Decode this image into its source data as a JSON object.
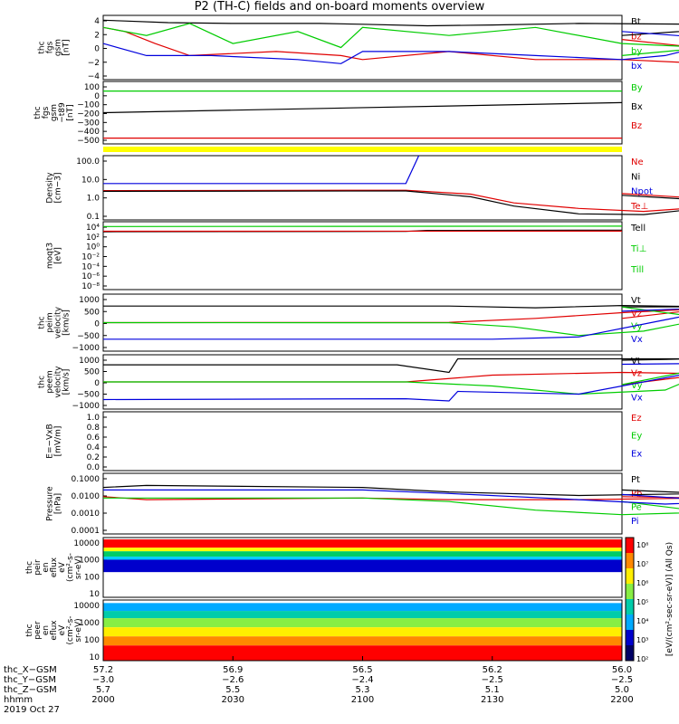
{
  "title": "P2 (TH-C) fields and on-board moments overview",
  "date_label": "2019 Oct 27",
  "colors": {
    "black": "#000000",
    "red": "#e00000",
    "green": "#00cc00",
    "blue": "#0000dd",
    "yellow": "#ffff00"
  },
  "chart_data": [
    {
      "type": "line",
      "panel": "fgs_gsm",
      "ylabel": [
        "thc",
        "fgs",
        "gsm",
        "[nT]"
      ],
      "yticks": [
        "4",
        "2",
        "0",
        "−2",
        "−4"
      ],
      "ylim": [
        -4,
        4
      ],
      "legend": [
        {
          "name": "Bt",
          "color": "black"
        },
        {
          "name": "bz",
          "color": "red"
        },
        {
          "name": "by",
          "color": "green"
        },
        {
          "name": "bx",
          "color": "blue"
        }
      ],
      "series": [
        {
          "name": "Bt",
          "x": [
            2000,
            2005,
            2015,
            2030,
            2050,
            2100,
            2115,
            2130,
            2150,
            2180,
            2190,
            2200
          ],
          "values": [
            3.4,
            3.3,
            3.1,
            3.0,
            3.0,
            2.9,
            2.7,
            2.8,
            3.0,
            2.9,
            2.6,
            1.5
          ]
        },
        {
          "name": "bz",
          "x": [
            2000,
            2005,
            2012,
            2020,
            2040,
            2055,
            2100,
            2120,
            2140,
            2160,
            2180,
            2195,
            2200
          ],
          "values": [
            2.5,
            2.0,
            0.5,
            -1.0,
            -0.5,
            -1.0,
            -1.5,
            -0.5,
            -1.5,
            -1.5,
            -2.0,
            -1.0,
            1.0
          ]
        },
        {
          "name": "by",
          "x": [
            2000,
            2010,
            2020,
            2030,
            2045,
            2055,
            2100,
            2120,
            2140,
            2160,
            2180,
            2200
          ],
          "values": [
            2.5,
            1.5,
            3.0,
            0.5,
            2.0,
            0.0,
            2.5,
            1.5,
            2.5,
            0.5,
            0.0,
            -1.0
          ]
        },
        {
          "name": "bx",
          "x": [
            2000,
            2010,
            2025,
            2045,
            2055,
            2100,
            2120,
            2140,
            2160,
            2170,
            2185,
            2200
          ],
          "values": [
            0.5,
            -1.0,
            -1.0,
            -1.5,
            -2.0,
            -0.5,
            -0.5,
            -1.0,
            -1.5,
            -1.0,
            1.0,
            2.0
          ]
        }
      ]
    },
    {
      "type": "line",
      "panel": "fgs_gse_minus_t89",
      "ylabel": [
        "thc",
        "fgs",
        "gsm",
        "−t89",
        "[nT]"
      ],
      "yticks": [
        "100",
        "0",
        "−100",
        "−200",
        "−300",
        "−400",
        "−500"
      ],
      "ylim": [
        -550,
        100
      ],
      "legend": [
        {
          "name": "By",
          "color": "green"
        },
        {
          "name": "Bx",
          "color": "black"
        },
        {
          "name": "Bz",
          "color": "red"
        }
      ],
      "series": [
        {
          "name": "By",
          "x": [
            2000,
            2200
          ],
          "values": [
            0,
            0
          ]
        },
        {
          "name": "Bx",
          "x": [
            2000,
            2200
          ],
          "values": [
            -225,
            -120
          ]
        },
        {
          "name": "Bz",
          "x": [
            2000,
            2200
          ],
          "values": [
            -490,
            -490
          ]
        }
      ]
    },
    {
      "type": "line",
      "panel": "density",
      "ylabel": [
        "Density",
        "[cm−3]"
      ],
      "yticks": [
        "100.0",
        "10.0",
        "1.0",
        "0.1"
      ],
      "ylim": [
        0.05,
        200
      ],
      "yscale": "log",
      "legend": [
        {
          "name": "Ne",
          "color": "red"
        },
        {
          "name": "Ni",
          "color": "black"
        },
        {
          "name": "Npot",
          "color": "blue"
        },
        {
          "name": "Te⊥",
          "color": "red"
        }
      ],
      "series": [
        {
          "name": "Ne",
          "x": [
            2000,
            2110,
            2125,
            2135,
            2150,
            2165,
            2175,
            2190,
            2200
          ],
          "values": [
            2.2,
            2.3,
            1.4,
            0.45,
            0.22,
            0.15,
            0.22,
            0.55,
            1.5
          ]
        },
        {
          "name": "Ni",
          "x": [
            2000,
            2110,
            2125,
            2135,
            2150,
            2165,
            2175,
            2190,
            2200
          ],
          "values": [
            2.0,
            2.1,
            1.0,
            0.3,
            0.11,
            0.1,
            0.18,
            0.45,
            1.2
          ]
        },
        {
          "name": "Npot",
          "x": [
            2000,
            2110,
            2113
          ],
          "values": [
            5.5,
            5.5,
            300
          ]
        }
      ]
    },
    {
      "type": "line",
      "panel": "moqt3",
      "ylabel": [
        "moqt3",
        "[eV]"
      ],
      "yticks": [
        "10⁴",
        "10²",
        "10⁰",
        "10⁻²",
        "10⁻⁴",
        "10⁻⁶",
        "10⁻⁸"
      ],
      "ylim": [
        1e-09,
        10000.0
      ],
      "yscale": "log",
      "legend": [
        {
          "name": "Tell",
          "color": "black"
        },
        {
          "name": "Ti⊥",
          "color": "green"
        },
        {
          "name": "Till",
          "color": "green"
        }
      ],
      "series": [
        {
          "name": "Tell",
          "x": [
            2000,
            2110,
            2115,
            2200
          ],
          "values": [
            120,
            140,
            220,
            240
          ]
        },
        {
          "name": "Te⊥",
          "x": [
            2000,
            2200
          ],
          "values": [
            150,
            160
          ]
        },
        {
          "name": "Ti⊥",
          "x": [
            2000,
            2200
          ],
          "values": [
            1200,
            1400
          ]
        }
      ]
    },
    {
      "type": "line",
      "panel": "peim_velocity",
      "ylabel": [
        "thc",
        "peim",
        "velocity",
        "[km/s]"
      ],
      "yticks": [
        "1000",
        "500",
        "0",
        "−500",
        "−1000"
      ],
      "ylim": [
        -1000,
        1000
      ],
      "legend": [
        {
          "name": "Vt",
          "color": "black"
        },
        {
          "name": "Vz",
          "color": "red"
        },
        {
          "name": "Vy",
          "color": "green"
        },
        {
          "name": "Vx",
          "color": "blue"
        }
      ],
      "series": [
        {
          "name": "Vt",
          "x": [
            2000,
            2120,
            2140,
            2160,
            2180,
            2200
          ],
          "values": [
            580,
            580,
            520,
            600,
            560,
            550
          ]
        },
        {
          "name": "Vz",
          "x": [
            2000,
            2120,
            2140,
            2160,
            2180,
            2200
          ],
          "values": [
            0,
            10,
            150,
            350,
            500,
            150
          ]
        },
        {
          "name": "Vy",
          "x": [
            2000,
            2120,
            2135,
            2150,
            2165,
            2180,
            2200
          ],
          "values": [
            0,
            -5,
            -150,
            -450,
            -300,
            150,
            550
          ]
        },
        {
          "name": "Vx",
          "x": [
            2000,
            2130,
            2150,
            2170,
            2185,
            2200
          ],
          "values": [
            -580,
            -580,
            -500,
            100,
            550,
            400
          ]
        }
      ]
    },
    {
      "type": "line",
      "panel": "peem_velocity",
      "ylabel": [
        "thc",
        "peem",
        "velocity",
        "[km/s]"
      ],
      "yticks": [
        "1000",
        "500",
        "0",
        "−500",
        "−1000"
      ],
      "ylim": [
        -1000,
        1000
      ],
      "legend": [
        {
          "name": "Vt",
          "color": "black"
        },
        {
          "name": "Vz",
          "color": "red"
        },
        {
          "name": "Vy",
          "color": "green"
        },
        {
          "name": "Vx",
          "color": "blue"
        }
      ],
      "series": [
        {
          "name": "Vt",
          "x": [
            2000,
            2108,
            2120,
            2122,
            2150,
            2170,
            2190,
            2200
          ],
          "values": [
            630,
            630,
            350,
            850,
            850,
            850,
            880,
            800
          ]
        },
        {
          "name": "Vz",
          "x": [
            2000,
            2110,
            2130,
            2160,
            2180,
            2200
          ],
          "values": [
            0,
            0,
            250,
            350,
            300,
            -100
          ]
        },
        {
          "name": "Vy",
          "x": [
            2000,
            2110,
            2130,
            2150,
            2170,
            2185,
            2200
          ],
          "values": [
            0,
            0,
            -150,
            -450,
            -300,
            700,
            -100
          ]
        },
        {
          "name": "Vx",
          "x": [
            2000,
            2110,
            2120,
            2122,
            2150,
            2175,
            2190,
            2200
          ],
          "values": [
            -650,
            -620,
            -700,
            -350,
            -450,
            300,
            700,
            650
          ]
        }
      ]
    },
    {
      "type": "line",
      "panel": "e_vxb",
      "ylabel": [
        "E=−VxB",
        "[mV/m]"
      ],
      "yticks": [
        "1.0",
        "0.8",
        "0.6",
        "0.4",
        "0.2",
        "0.0"
      ],
      "ylim": [
        0,
        1
      ],
      "legend": [
        {
          "name": "Ez",
          "color": "red"
        },
        {
          "name": "Ey",
          "color": "green"
        },
        {
          "name": "Ex",
          "color": "blue"
        }
      ],
      "series": []
    },
    {
      "type": "line",
      "panel": "pressure",
      "ylabel": [
        "Pressure",
        "[nPa]"
      ],
      "yticks": [
        "0.1000",
        "0.0100",
        "0.0010",
        "0.0001"
      ],
      "ylim": [
        0.0001,
        0.1
      ],
      "yscale": "log",
      "legend": [
        {
          "name": "Pt",
          "color": "black"
        },
        {
          "name": "Pb",
          "color": "red"
        },
        {
          "name": "Pe",
          "color": "green"
        },
        {
          "name": "Pi",
          "color": "blue"
        }
      ],
      "series": [
        {
          "name": "Pt",
          "x": [
            2000,
            2010,
            2100,
            2120,
            2150,
            2180,
            2200
          ],
          "values": [
            0.02,
            0.025,
            0.02,
            0.012,
            0.008,
            0.01,
            0.015
          ]
        },
        {
          "name": "Pb",
          "x": [
            2000,
            2010,
            2100,
            2120,
            2150,
            2180,
            2200
          ],
          "values": [
            0.007,
            0.005,
            0.006,
            0.005,
            0.005,
            0.006,
            0.007
          ]
        },
        {
          "name": "Pe",
          "x": [
            2000,
            2100,
            2120,
            2140,
            2160,
            2180,
            2200
          ],
          "values": [
            0.006,
            0.006,
            0.004,
            0.0015,
            0.0009,
            0.0012,
            0.004
          ]
        },
        {
          "name": "Pi",
          "x": [
            2000,
            2100,
            2120,
            2150,
            2170,
            2185,
            2200
          ],
          "values": [
            0.015,
            0.015,
            0.01,
            0.005,
            0.003,
            0.004,
            0.009
          ]
        }
      ]
    },
    {
      "type": "heatmap",
      "panel": "peir_eflux",
      "ylabel": [
        "thc",
        "peir",
        "en",
        "eflux",
        "eV",
        "(cm²-s-",
        "sr-eV)"
      ],
      "yticks": [
        "10000",
        "1000",
        "100",
        "10"
      ],
      "yscale": "log"
    },
    {
      "type": "heatmap",
      "panel": "peer_eflux",
      "ylabel": [
        "thc",
        "peer",
        "en",
        "eflux",
        "eV",
        "(cm²-s-",
        "sr-eV)"
      ],
      "yticks": [
        "10000",
        "1000",
        "100",
        "10"
      ],
      "yscale": "log"
    }
  ],
  "colorbar": {
    "ticks": [
      "10⁸",
      "10⁷",
      "10⁶",
      "10⁵",
      "10⁴",
      "10³",
      "10²"
    ],
    "label": "[eV/(cm²-sec-sr-eV)] (All Qs)"
  },
  "xaxis": {
    "row_labels": [
      "thc_X−GSM",
      "thc_Y−GSM",
      "thc_Z−GSM",
      "hhmm"
    ],
    "ticks": [
      {
        "x": 2000,
        "vals": [
          "57.2",
          "−3.0",
          "5.7",
          "2000"
        ]
      },
      {
        "x": 2030,
        "vals": [
          "56.9",
          "−2.6",
          "5.5",
          "2030"
        ]
      },
      {
        "x": 2100,
        "vals": [
          "56.5",
          "−2.4",
          "5.3",
          "2100"
        ]
      },
      {
        "x": 2130,
        "vals": [
          "56.2",
          "−2.5",
          "5.1",
          "2130"
        ]
      },
      {
        "x": 2200,
        "vals": [
          "56.0",
          "−2.5",
          "5.0",
          "2200"
        ]
      }
    ]
  }
}
